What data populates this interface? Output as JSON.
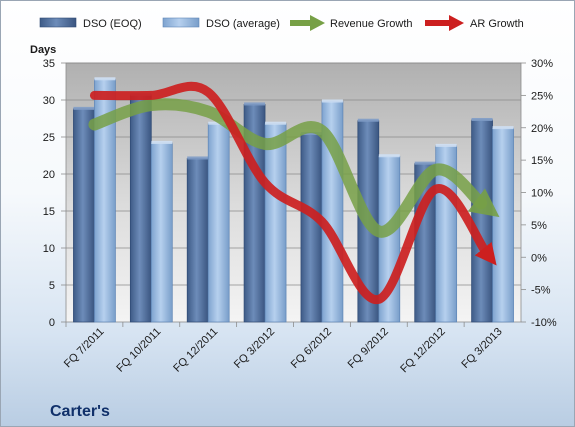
{
  "chart_data": {
    "type": "bar",
    "title": "",
    "company_label": "Carter's",
    "ylabel_left": "Days",
    "ylim_left": [
      0,
      35
    ],
    "yticks_left": [
      0,
      5,
      10,
      15,
      20,
      25,
      30,
      35
    ],
    "ylim_right": [
      -10,
      30
    ],
    "yticks_right": [
      "-10%",
      "-5%",
      "0%",
      "5%",
      "10%",
      "15%",
      "20%",
      "25%",
      "30%"
    ],
    "grid": true,
    "legend_position": "top",
    "categories": [
      "FQ 7/2011",
      "FQ 10/2011",
      "FQ 12/2011",
      "FQ 3/2012",
      "FQ 6/2012",
      "FQ 9/2012",
      "FQ 12/2012",
      "FQ 3/2013"
    ],
    "series": [
      {
        "name": "DSO (EOQ)",
        "kind": "bar",
        "axis": "left",
        "color": "#4f6d99",
        "values": [
          28.8,
          30.7,
          22.1,
          29.4,
          25.4,
          27.2,
          21.4,
          27.3
        ]
      },
      {
        "name": "DSO (average)",
        "kind": "bar",
        "axis": "left",
        "color": "#8fb3dc",
        "values": [
          32.8,
          24.2,
          26.8,
          26.8,
          29.8,
          22.4,
          23.8,
          26.2
        ]
      },
      {
        "name": "Revenue Growth",
        "kind": "arrow-line",
        "axis": "right",
        "unit": "%",
        "color": "#77a046",
        "values": [
          20.5,
          23.5,
          22.5,
          17.5,
          19.5,
          4.0,
          13.5,
          7.0
        ]
      },
      {
        "name": "AR Growth",
        "kind": "arrow-line",
        "axis": "right",
        "unit": "%",
        "color": "#cc1f1f",
        "values": [
          25.0,
          25.0,
          25.5,
          11.5,
          5.5,
          -6.5,
          10.5,
          -0.5
        ]
      }
    ]
  }
}
